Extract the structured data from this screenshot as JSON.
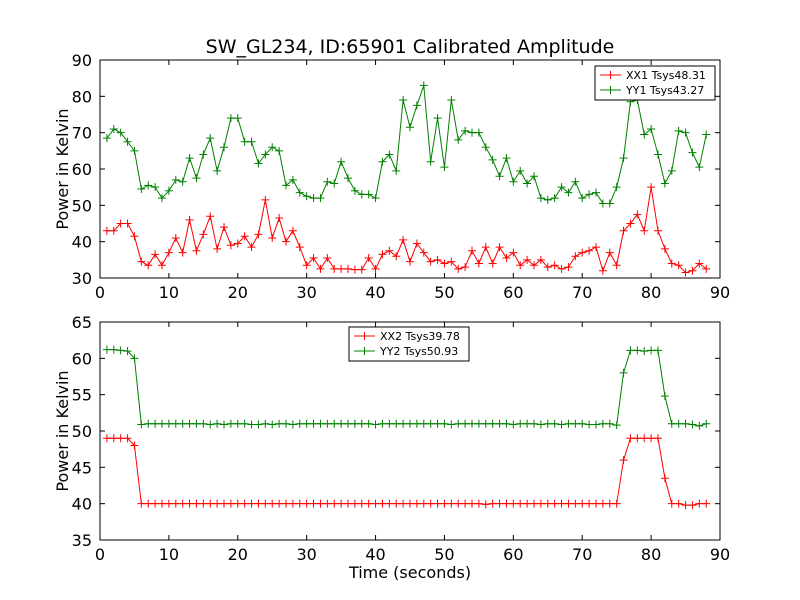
{
  "title": "SW_GL234, ID:65901 Calibrated Amplitude",
  "chart_data": [
    {
      "type": "line",
      "xlabel": "",
      "ylabel": "Power in Kelvin",
      "xlim": [
        0,
        90
      ],
      "ylim": [
        30,
        90
      ],
      "xticks": [
        0,
        10,
        20,
        30,
        40,
        50,
        60,
        70,
        80,
        90
      ],
      "yticks": [
        30,
        40,
        50,
        60,
        70,
        80,
        90
      ],
      "grid": false,
      "legend_position": "top-right",
      "x": [
        1,
        2,
        3,
        4,
        5,
        6,
        7,
        8,
        9,
        10,
        11,
        12,
        13,
        14,
        15,
        16,
        17,
        18,
        19,
        20,
        21,
        22,
        23,
        24,
        25,
        26,
        27,
        28,
        29,
        30,
        31,
        32,
        33,
        34,
        35,
        36,
        37,
        38,
        39,
        40,
        41,
        42,
        43,
        44,
        45,
        46,
        47,
        48,
        49,
        50,
        51,
        52,
        53,
        54,
        55,
        56,
        57,
        58,
        59,
        60,
        61,
        62,
        63,
        64,
        65,
        66,
        67,
        68,
        69,
        70,
        71,
        72,
        73,
        74,
        75,
        76,
        77,
        78,
        79,
        80,
        81,
        82,
        83,
        84,
        85,
        86,
        87,
        88
      ],
      "series": [
        {
          "name": "XX1 Tsys48.31",
          "color": "#ff0000",
          "values": [
            43,
            43,
            45,
            45,
            41.5,
            34.5,
            33.5,
            36.5,
            33.5,
            37,
            41,
            37,
            46,
            37.5,
            42,
            47,
            38,
            44,
            39,
            39.5,
            41.5,
            38.5,
            42,
            51.5,
            41,
            46.5,
            40,
            43,
            38.5,
            33.5,
            35.5,
            32.5,
            35.5,
            32.5,
            32.5,
            32.5,
            32.3,
            32.3,
            35.5,
            32.5,
            36.5,
            37.5,
            36,
            40.5,
            34.5,
            39.5,
            37,
            34.5,
            35,
            34,
            34.5,
            32.5,
            33,
            37.5,
            34,
            38.5,
            34,
            38.5,
            35.5,
            37,
            33.5,
            35,
            33.5,
            35,
            33,
            33.5,
            32.5,
            33,
            36,
            37,
            37.5,
            38.5,
            32,
            37,
            33.5,
            43,
            45,
            47.5,
            43,
            55,
            43,
            38,
            34,
            33.5,
            31.5,
            32,
            34,
            32.5
          ]
        },
        {
          "name": "YY1 Tsys43.27",
          "color": "#008000",
          "values": [
            68.5,
            71,
            70,
            67.5,
            65,
            54.5,
            55.5,
            55,
            52,
            54,
            57,
            56.5,
            63,
            57.5,
            64,
            68.5,
            59.5,
            66,
            74,
            74,
            67.5,
            67.5,
            61.5,
            64,
            66,
            65,
            55.5,
            57,
            53.5,
            52.5,
            52,
            52,
            56.5,
            56,
            62,
            57.5,
            54,
            53,
            53,
            52,
            62,
            64,
            59.5,
            79,
            71.5,
            77.5,
            83,
            62,
            74,
            60.5,
            79,
            68,
            70.5,
            70,
            70,
            66,
            62.5,
            58,
            63,
            56.5,
            59.5,
            56,
            58,
            52,
            51.5,
            52,
            55,
            53.5,
            56.5,
            52,
            53,
            53.5,
            50.5,
            50.5,
            55,
            63,
            78.5,
            79,
            69.5,
            71,
            64,
            56,
            59.5,
            70.5,
            70,
            64.5,
            60.5,
            69.5
          ]
        }
      ]
    },
    {
      "type": "line",
      "xlabel": "Time (seconds)",
      "ylabel": "Power in Kelvin",
      "xlim": [
        0,
        90
      ],
      "ylim": [
        35,
        65
      ],
      "xticks": [
        0,
        10,
        20,
        30,
        40,
        50,
        60,
        70,
        80,
        90
      ],
      "yticks": [
        35,
        40,
        45,
        50,
        55,
        60,
        65
      ],
      "grid": false,
      "legend_position": "top-center",
      "x": [
        1,
        2,
        3,
        4,
        5,
        6,
        7,
        8,
        9,
        10,
        11,
        12,
        13,
        14,
        15,
        16,
        17,
        18,
        19,
        20,
        21,
        22,
        23,
        24,
        25,
        26,
        27,
        28,
        29,
        30,
        31,
        32,
        33,
        34,
        35,
        36,
        37,
        38,
        39,
        40,
        41,
        42,
        43,
        44,
        45,
        46,
        47,
        48,
        49,
        50,
        51,
        52,
        53,
        54,
        55,
        56,
        57,
        58,
        59,
        60,
        61,
        62,
        63,
        64,
        65,
        66,
        67,
        68,
        69,
        70,
        71,
        72,
        73,
        74,
        75,
        76,
        77,
        78,
        79,
        80,
        81,
        82,
        83,
        84,
        85,
        86,
        87,
        88
      ],
      "series": [
        {
          "name": "XX2 Tsys39.78",
          "color": "#ff0000",
          "values": [
            49,
            49,
            49,
            49,
            48,
            40,
            40,
            40,
            40,
            40,
            40,
            40,
            40,
            40,
            40,
            40,
            40,
            40,
            40,
            40,
            40,
            40,
            40,
            40,
            40,
            40,
            40,
            40,
            40,
            40,
            40,
            40,
            40,
            40,
            40,
            40,
            40,
            40,
            40,
            40,
            40,
            40,
            40,
            40,
            40,
            40,
            40,
            40,
            40,
            40,
            40,
            40,
            40,
            40,
            40,
            39.9,
            40,
            40,
            40,
            40,
            40,
            40,
            40,
            40,
            40,
            40,
            40,
            40,
            40,
            40,
            40,
            40,
            40,
            40,
            40,
            46,
            49,
            49,
            49,
            49,
            49,
            43.5,
            40,
            40,
            39.8,
            39.8,
            40,
            40
          ]
        },
        {
          "name": "YY2 Tsys50.93",
          "color": "#008000",
          "values": [
            61.2,
            61.2,
            61.1,
            61,
            60,
            50.9,
            51,
            51,
            51,
            51,
            51,
            51,
            51,
            51,
            51,
            50.9,
            51,
            50.9,
            51,
            51,
            51,
            50.9,
            50.9,
            51,
            50.9,
            51,
            51,
            50.9,
            51,
            51,
            51,
            51,
            51,
            51,
            51,
            51,
            51,
            51,
            51,
            50.9,
            51,
            51,
            51,
            51,
            51,
            51,
            51,
            51,
            51,
            51,
            50.9,
            51,
            51,
            51,
            51,
            51,
            51,
            51,
            51,
            50.9,
            51,
            51,
            51,
            50.9,
            51,
            51,
            50.9,
            51,
            51,
            51,
            50.9,
            50.9,
            51,
            51,
            50.8,
            58,
            61.1,
            61.1,
            61,
            61.1,
            61.1,
            54.8,
            51,
            51,
            51,
            50.9,
            50.7,
            51
          ]
        }
      ]
    }
  ]
}
